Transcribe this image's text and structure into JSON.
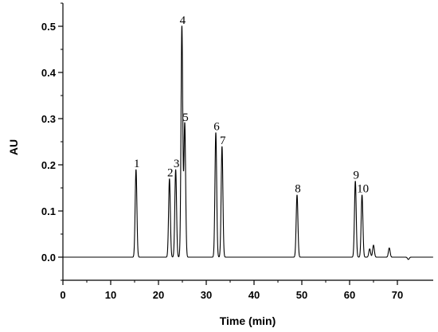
{
  "chart_data": {
    "type": "line",
    "title": "",
    "xlabel": "Time (min)",
    "ylabel": "AU",
    "xlim": [
      0,
      77.5
    ],
    "ylim": [
      -0.05,
      0.55
    ],
    "xticks": [
      0,
      10,
      20,
      30,
      40,
      50,
      60,
      70
    ],
    "yticks": [
      0.0,
      0.1,
      0.2,
      0.3,
      0.4,
      0.5
    ],
    "ytick_labels": [
      "0.0",
      "0.1",
      "0.2",
      "0.3",
      "0.4",
      "0.5"
    ],
    "grid": false,
    "line_color": "#000000",
    "peaks": [
      {
        "label": "1",
        "time": 15.3,
        "height": 0.19
      },
      {
        "label": "2",
        "time": 22.3,
        "height": 0.17
      },
      {
        "label": "3",
        "time": 23.6,
        "height": 0.19
      },
      {
        "label": "4",
        "time": 24.9,
        "height": 0.5
      },
      {
        "label": "5",
        "time": 25.5,
        "height": 0.29
      },
      {
        "label": "6",
        "time": 32.0,
        "height": 0.27
      },
      {
        "label": "7",
        "time": 33.3,
        "height": 0.24
      },
      {
        "label": "8",
        "time": 49.0,
        "height": 0.135
      },
      {
        "label": "9",
        "time": 61.2,
        "height": 0.165
      },
      {
        "label": "10",
        "time": 62.6,
        "height": 0.135
      }
    ],
    "minor_peaks": [
      {
        "time": 64.2,
        "height": 0.018
      },
      {
        "time": 65.0,
        "height": 0.026
      },
      {
        "time": 68.3,
        "height": 0.02
      },
      {
        "time": 72.3,
        "height": -0.005
      }
    ]
  }
}
